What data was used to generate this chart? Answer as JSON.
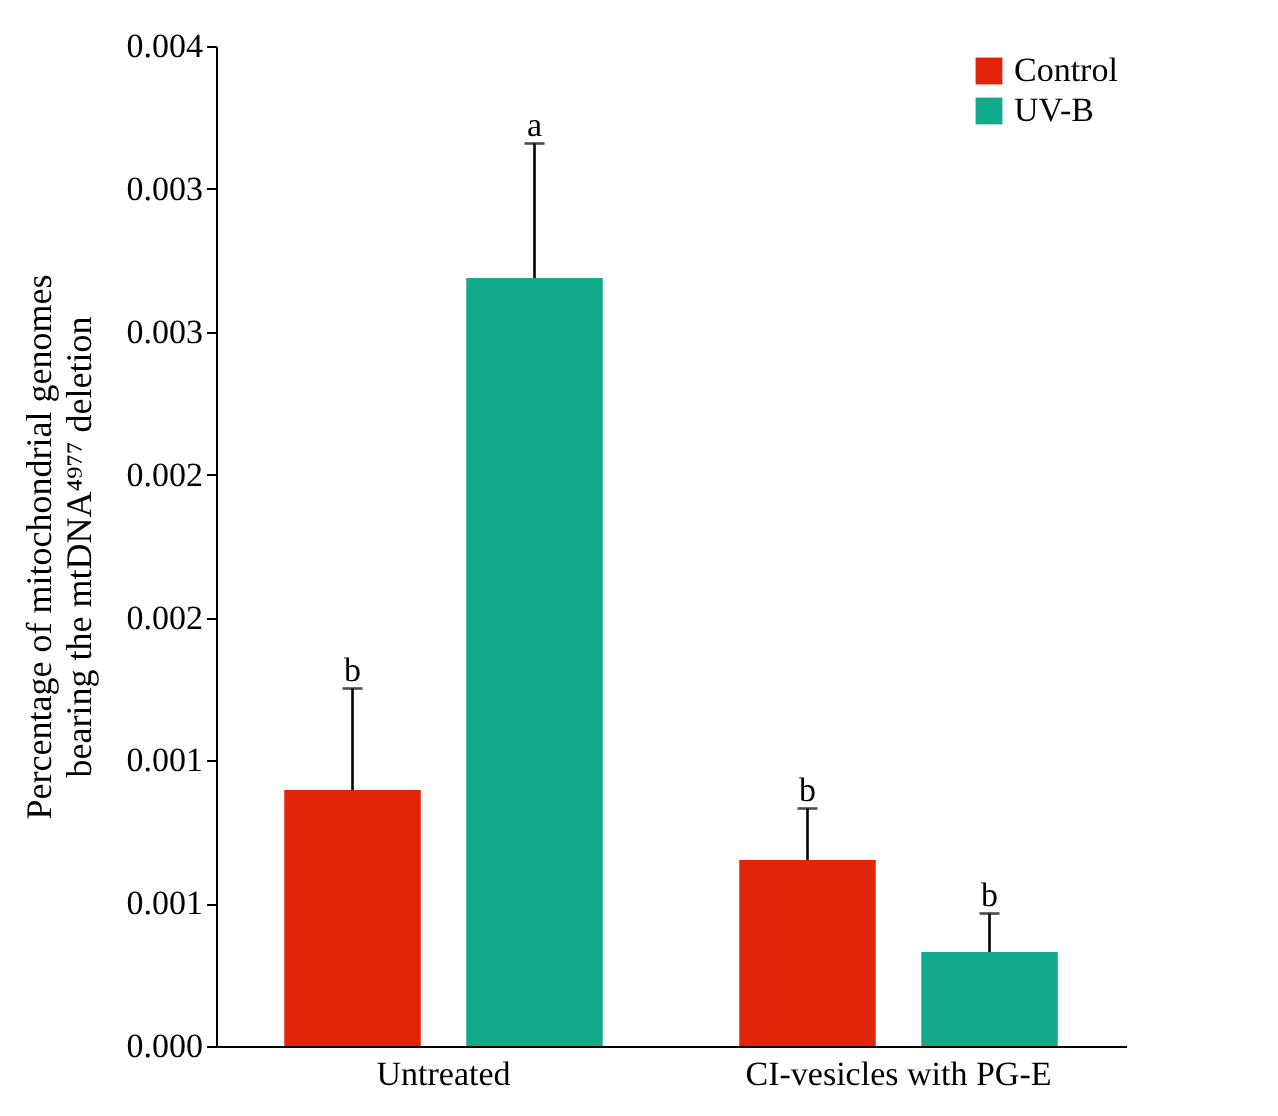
{
  "chart_data": {
    "type": "bar",
    "ylabel": "Percentage of mitochondrial genomes bearing the mtDNA⁴⁹⁷⁷ deletion",
    "categories": [
      "Untreated",
      "CI-vesicles with PG-E"
    ],
    "series": [
      {
        "name": "Control",
        "color": "#e3240b",
        "values": [
          0.001024,
          0.000744
        ],
        "errors": [
          [
            0.001024,
            0.00143
          ],
          [
            0.000744,
            0.00095
          ]
        ]
      },
      {
        "name": "UV-B",
        "color": "#13a98b",
        "values": [
          0.003072,
          0.000376
        ],
        "errors": [
          [
            0.003072,
            0.00361
          ],
          [
            0.000376,
            0.00053
          ]
        ]
      }
    ],
    "ylim": [
      0,
      0.004
    ],
    "yticks": [
      {
        "value": 0,
        "label": "0.000"
      },
      {
        "value": 0.000571,
        "label": "0.001"
      },
      {
        "value": 0.001143,
        "label": "0.001"
      },
      {
        "value": 0.001714,
        "label": "0.002"
      },
      {
        "value": 0.002286,
        "label": "0.002"
      },
      {
        "value": 0.002857,
        "label": "0.003"
      },
      {
        "value": 0.003429,
        "label": "0.003"
      },
      {
        "value": 0.004,
        "label": "0.004"
      }
    ],
    "annotations": [
      "b",
      "a",
      "b",
      "b"
    ],
    "legend": "top right",
    "grid": false
  }
}
